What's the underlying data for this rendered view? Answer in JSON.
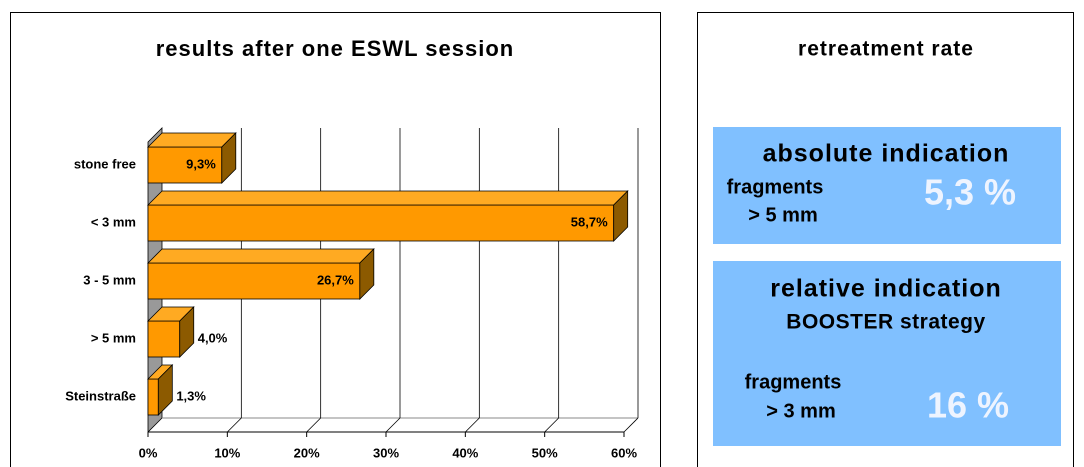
{
  "chart_data": {
    "type": "bar3d",
    "orientation": "horizontal",
    "title": "results after one ESWL session",
    "categories": [
      "stone free",
      "< 3 mm",
      "3 - 5 mm",
      "> 5 mm",
      "Steinstraße"
    ],
    "values": [
      9.3,
      58.7,
      26.7,
      4.0,
      1.3
    ],
    "value_labels": [
      "9,3%",
      "58,7%",
      "26,7%",
      "4,0%",
      "1,3%"
    ],
    "color": "#ff9900",
    "xlim": [
      0,
      60
    ],
    "xticks": [
      {
        "value": 0,
        "label": "0%"
      },
      {
        "value": 10,
        "label": "10%"
      },
      {
        "value": 20,
        "label": "20%"
      },
      {
        "value": 30,
        "label": "30%"
      },
      {
        "value": 40,
        "label": "40%"
      },
      {
        "value": 50,
        "label": "50%"
      },
      {
        "value": 60,
        "label": "60%"
      }
    ],
    "grid": true
  },
  "panel": {
    "title": "retreatment rate",
    "boxes": [
      {
        "heading": "absolute indication",
        "label_lines": [
          "fragments",
          "> 5 mm"
        ],
        "value": "5,3 %"
      },
      {
        "heading": "relative indication",
        "subheading": "BOOSTER strategy",
        "label_lines": [
          "fragments",
          "> 3 mm"
        ],
        "value": "16 %"
      }
    ]
  }
}
